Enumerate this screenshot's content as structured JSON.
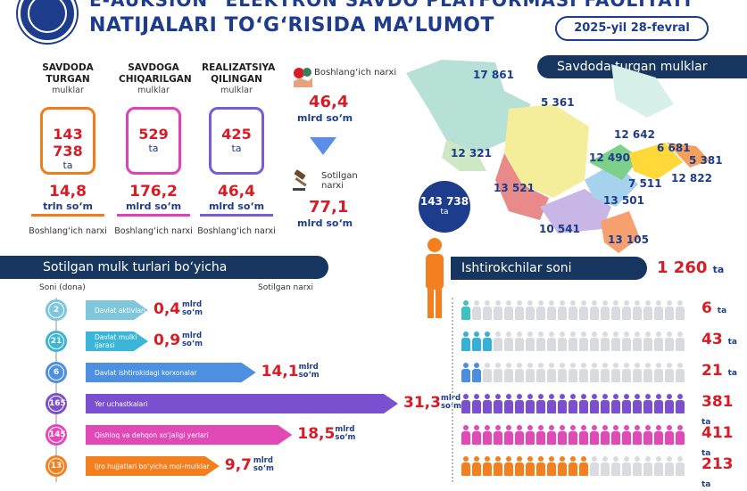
{
  "header": {
    "logo_text": "E-Auksion",
    "title_line1": "E-AUKSION\" ELEKTRON SAVDO PLATFORMASI FAOLIYATI",
    "title_line2": "NATIJALARI TO‘G‘RISIDA MA’LUMOT",
    "date": "2025-yil 28-fevral"
  },
  "stats": [
    {
      "heading": "SAVDODA TURGAN",
      "sub": "mulklar",
      "value": "143 738",
      "unit": "ta",
      "money": "14,8",
      "money_unit": "trln so‘m",
      "money_label": "Boshlang‘ich narxi",
      "color": "#f07d1a"
    },
    {
      "heading": "SAVDOGA CHIQARILGAN",
      "sub": "mulklar",
      "value": "529",
      "unit": "ta",
      "money": "176,2",
      "money_unit": "mlrd so‘m",
      "money_label": "Boshlang‘ich narxi",
      "color": "#e040b8"
    },
    {
      "heading": "REALIZATSIYA QILINGAN",
      "sub": "mulklar",
      "value": "425",
      "unit": "ta",
      "money": "46,4",
      "money_unit": "mlrd so‘m",
      "money_label": "Boshlang‘ich narxi",
      "color": "#7a5bd6"
    }
  ],
  "price": {
    "start_label": "Boshlang‘ich narxi",
    "start_value": "46,4",
    "start_unit": "mlrd so‘m",
    "sold_label": "Sotilgan narxi",
    "sold_value": "77,1",
    "sold_unit": "mlrd so‘m"
  },
  "map": {
    "title": "Savdoda turgan mulklar",
    "total": "143 738",
    "total_unit": "ta",
    "region_values": [
      "17 861",
      "5 361",
      "12 321",
      "13 521",
      "12 642",
      "6 681",
      "12 490",
      "5 381",
      "7 511",
      "12 822",
      "13 501",
      "10 541",
      "13 105"
    ]
  },
  "types": {
    "title": "Sotilgan mulk turlari bo‘yicha",
    "col_count": "Soni (dona)",
    "col_price": "Sotilgan narxi",
    "unit_top": "mlrd",
    "unit_bottom": "so‘m",
    "items": [
      {
        "count": "2",
        "label": "Davlat aktivlari",
        "value": "0,4",
        "color": "#7fc6dd"
      },
      {
        "count": "21",
        "label": "Davlat mulki ijarasi",
        "value": "0,9",
        "color": "#3cb6d8"
      },
      {
        "count": "6",
        "label": "Davlat ishtirokidagi korxonalar",
        "value": "14,1",
        "color": "#4d8fe0"
      },
      {
        "count": "165",
        "label": "Yer uchastkalari",
        "value": "31,3",
        "color": "#7a4fd0"
      },
      {
        "count": "145",
        "label": "Qishloq va dehqon xo‘jaligi yerlari",
        "value": "18,5",
        "color": "#e249b6"
      },
      {
        "count": "13",
        "label": "Ijro hujjatlari bo‘yicha mol-mulklar",
        "value": "9,7",
        "color": "#f47f1e"
      }
    ]
  },
  "participants": {
    "title": "Ishtirokchilar soni",
    "total": "1 260",
    "total_unit": "ta",
    "rows": [
      {
        "count": "6",
        "filled": 1,
        "color": "#3ec2c0"
      },
      {
        "count": "43",
        "filled": 3,
        "color": "#35b0d8"
      },
      {
        "count": "21",
        "filled": 2,
        "color": "#4b8ee0"
      },
      {
        "count": "381",
        "filled": 22,
        "color": "#7a4fd0"
      },
      {
        "count": "411",
        "filled": 24,
        "color": "#e249b6"
      },
      {
        "count": "213",
        "filled": 12,
        "color": "#f47f1e"
      }
    ],
    "count_unit": "ta"
  },
  "colors": {
    "navy": "#16365f",
    "red": "#d81b24",
    "blue": "#1d3c8c"
  }
}
